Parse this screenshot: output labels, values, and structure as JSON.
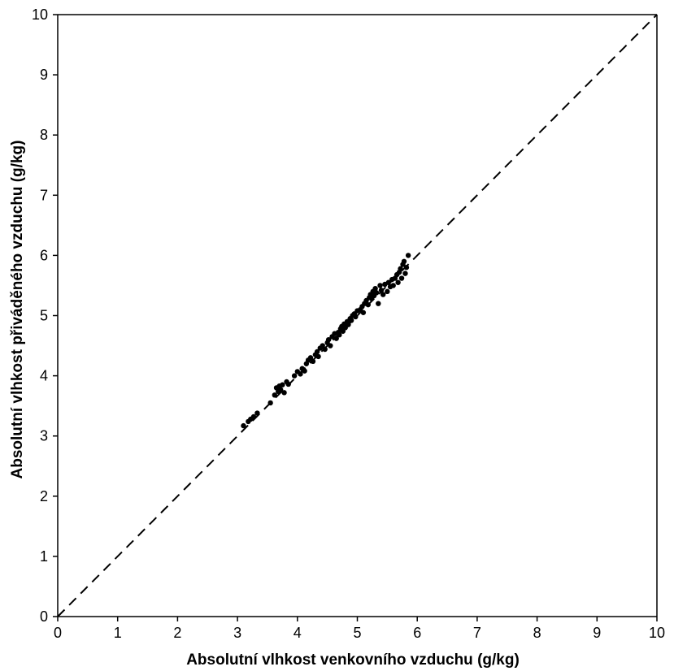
{
  "chart_data": {
    "type": "scatter",
    "title": "",
    "xlabel": "Absolutní vlhkost venkovního vzduchu (g/kg)",
    "ylabel": "Absolutní vlhkost přiváděného vzduchu (g/kg)",
    "xlim": [
      0,
      10
    ],
    "ylim": [
      0,
      10
    ],
    "xticks": [
      "0",
      "1",
      "2",
      "3",
      "4",
      "5",
      "6",
      "7",
      "8",
      "9",
      "10"
    ],
    "yticks": [
      "0",
      "1",
      "2",
      "3",
      "4",
      "5",
      "6",
      "7",
      "8",
      "9",
      "10"
    ],
    "grid": false,
    "legend": "none",
    "reference_line": {
      "style": "dashed",
      "from": [
        0,
        0
      ],
      "to": [
        10,
        10
      ]
    },
    "colors": {
      "points": "#000000",
      "axes": "#000000",
      "reference_line": "#000000"
    },
    "series": [
      {
        "points": [
          [
            3.1,
            3.17
          ],
          [
            3.18,
            3.24
          ],
          [
            3.22,
            3.28
          ],
          [
            3.27,
            3.32
          ],
          [
            3.33,
            3.38
          ],
          [
            3.55,
            3.55
          ],
          [
            3.62,
            3.68
          ],
          [
            3.65,
            3.8
          ],
          [
            3.68,
            3.74
          ],
          [
            3.7,
            3.83
          ],
          [
            3.72,
            3.77
          ],
          [
            3.75,
            3.85
          ],
          [
            3.78,
            3.72
          ],
          [
            3.82,
            3.9
          ],
          [
            3.85,
            3.86
          ],
          [
            3.95,
            4.0
          ],
          [
            4.0,
            4.07
          ],
          [
            4.05,
            4.03
          ],
          [
            4.08,
            4.12
          ],
          [
            4.12,
            4.08
          ],
          [
            4.15,
            4.2
          ],
          [
            4.18,
            4.26
          ],
          [
            4.22,
            4.3
          ],
          [
            4.26,
            4.24
          ],
          [
            4.3,
            4.35
          ],
          [
            4.33,
            4.4
          ],
          [
            4.35,
            4.32
          ],
          [
            4.38,
            4.46
          ],
          [
            4.42,
            4.5
          ],
          [
            4.46,
            4.44
          ],
          [
            4.5,
            4.55
          ],
          [
            4.52,
            4.6
          ],
          [
            4.55,
            4.5
          ],
          [
            4.58,
            4.65
          ],
          [
            4.62,
            4.7
          ],
          [
            4.65,
            4.62
          ],
          [
            4.68,
            4.72
          ],
          [
            4.7,
            4.68
          ],
          [
            4.72,
            4.78
          ],
          [
            4.74,
            4.82
          ],
          [
            4.76,
            4.74
          ],
          [
            4.78,
            4.86
          ],
          [
            4.8,
            4.8
          ],
          [
            4.83,
            4.9
          ],
          [
            4.85,
            4.85
          ],
          [
            4.88,
            4.95
          ],
          [
            4.9,
            4.92
          ],
          [
            4.92,
            5.0
          ],
          [
            4.95,
            5.03
          ],
          [
            4.97,
            4.98
          ],
          [
            5.0,
            5.08
          ],
          [
            5.05,
            5.1
          ],
          [
            5.08,
            5.15
          ],
          [
            5.1,
            5.05
          ],
          [
            5.12,
            5.2
          ],
          [
            5.15,
            5.25
          ],
          [
            5.18,
            5.18
          ],
          [
            5.2,
            5.3
          ],
          [
            5.22,
            5.35
          ],
          [
            5.24,
            5.28
          ],
          [
            5.26,
            5.4
          ],
          [
            5.28,
            5.33
          ],
          [
            5.3,
            5.45
          ],
          [
            5.32,
            5.38
          ],
          [
            5.35,
            5.2
          ],
          [
            5.38,
            5.5
          ],
          [
            5.4,
            5.42
          ],
          [
            5.43,
            5.35
          ],
          [
            5.46,
            5.52
          ],
          [
            5.5,
            5.4
          ],
          [
            5.52,
            5.55
          ],
          [
            5.55,
            5.48
          ],
          [
            5.58,
            5.6
          ],
          [
            5.6,
            5.5
          ],
          [
            5.63,
            5.62
          ],
          [
            5.66,
            5.68
          ],
          [
            5.68,
            5.55
          ],
          [
            5.7,
            5.72
          ],
          [
            5.72,
            5.78
          ],
          [
            5.74,
            5.62
          ],
          [
            5.76,
            5.85
          ],
          [
            5.78,
            5.9
          ],
          [
            5.8,
            5.7
          ],
          [
            5.82,
            5.8
          ],
          [
            5.85,
            6.0
          ]
        ]
      }
    ]
  }
}
